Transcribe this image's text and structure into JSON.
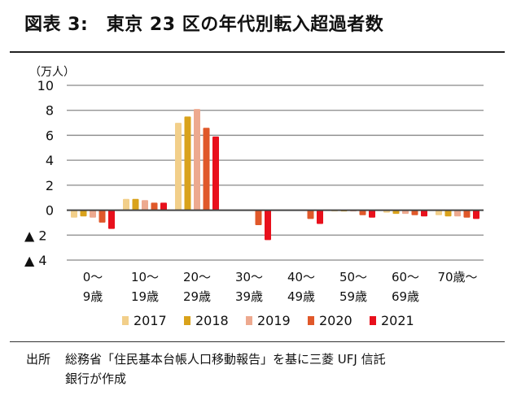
{
  "chart_data": {
    "type": "bar",
    "title": "図表 3:　東京 23 区の年代別転入超過者数",
    "ylabel": "（万人）",
    "ylim": [
      -4,
      10
    ],
    "yticks": [
      10,
      8,
      6,
      4,
      2,
      0,
      -2,
      -4
    ],
    "ytick_labels": [
      "10",
      "8",
      "6",
      "4",
      "2",
      "0",
      "▲ 2",
      "▲ 4"
    ],
    "grid": true,
    "legend": "bottom",
    "categories": [
      [
        "0～",
        "9歳"
      ],
      [
        "10～",
        "19歳"
      ],
      [
        "20～",
        "29歳"
      ],
      [
        "30～",
        "39歳"
      ],
      [
        "40～",
        "49歳"
      ],
      [
        "50～",
        "59歳"
      ],
      [
        "60～",
        "69歳"
      ],
      [
        "70歳～",
        ""
      ]
    ],
    "series": [
      {
        "name": "2017",
        "color": "#f2cf8a",
        "values": [
          -0.6,
          0.9,
          7.0,
          0,
          0,
          -0.1,
          -0.2,
          -0.4
        ]
      },
      {
        "name": "2018",
        "color": "#d9a21b",
        "values": [
          -0.5,
          0.9,
          7.5,
          0,
          0,
          -0.1,
          -0.3,
          -0.5
        ]
      },
      {
        "name": "2019",
        "color": "#eda98f",
        "values": [
          -0.6,
          0.8,
          8.1,
          0,
          0,
          -0.1,
          -0.3,
          -0.5
        ]
      },
      {
        "name": "2020",
        "color": "#e0582a",
        "values": [
          -1.0,
          0.6,
          6.6,
          -1.2,
          -0.7,
          -0.4,
          -0.4,
          -0.6
        ]
      },
      {
        "name": "2021",
        "color": "#e8101c",
        "values": [
          -1.5,
          0.6,
          5.9,
          -2.4,
          -1.1,
          -0.6,
          -0.5,
          -0.7
        ]
      }
    ]
  },
  "footer": {
    "label": "出所",
    "line1": "総務省「住民基本台帳人口移動報告」を基に三菱 UFJ 信託",
    "line2": "銀行が作成"
  }
}
